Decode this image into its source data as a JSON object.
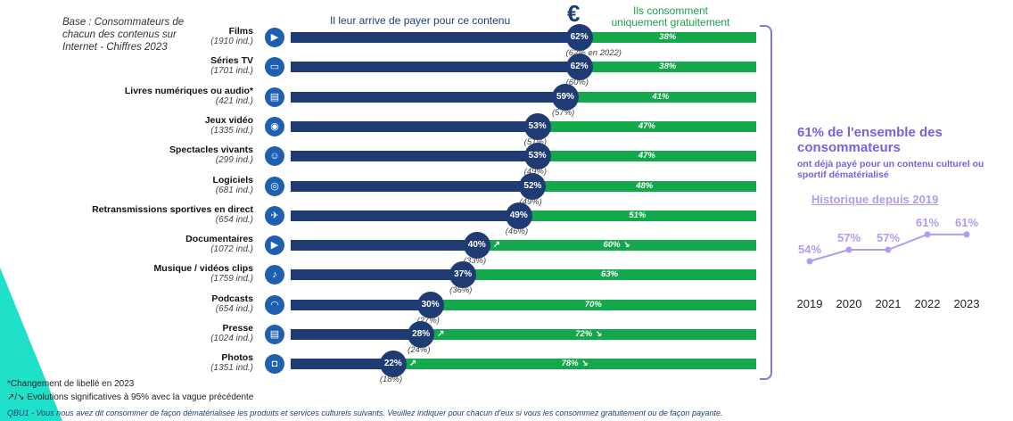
{
  "base_note": "Base : Consommateurs de chacun des contenus sur Internet - Chiffres 2023",
  "headers": {
    "paid": "Il leur arrive de payer pour ce contenu",
    "free_line1": "Ils consomment",
    "free_line2": "uniquement gratuitement",
    "euro_symbol": "€"
  },
  "chart_data": [
    {
      "type": "bar",
      "stacked": true,
      "orientation": "horizontal",
      "xlim": [
        0,
        100
      ],
      "categories": [
        "Films",
        "Séries TV",
        "Livres numériques ou audio*",
        "Jeux vidéo",
        "Spectacles vivants",
        "Logiciels",
        "Retransmissions sportives en direct",
        "Documentaires",
        "Musique / vidéos clips",
        "Podcasts",
        "Presse",
        "Photos"
      ],
      "bases": [
        "(1910 ind.)",
        "(1701 ind.)",
        "(421 ind.)",
        "(1335 ind.)",
        "(299 ind.)",
        "(681 ind.)",
        "(654 ind.)",
        "(1072 ind.)",
        "(1759 ind.)",
        "(654 ind.)",
        "(1024 ind.)",
        "(1351 ind.)"
      ],
      "icons": [
        "film-camera-icon",
        "tv-icon",
        "ebook-icon",
        "gamepad-icon",
        "theater-masks-icon",
        "software-disc-icon",
        "sport-runner-icon",
        "documentary-camera-icon",
        "music-icon",
        "headphones-icon",
        "newspaper-icon",
        "photo-camera-icon"
      ],
      "series": [
        {
          "name": "Il leur arrive de payer pour ce contenu",
          "color": "#1f3b73",
          "values": [
            62,
            62,
            59,
            53,
            53,
            52,
            49,
            40,
            37,
            30,
            28,
            22
          ],
          "labels": [
            "62%",
            "62%",
            "59%",
            "53%",
            "53%",
            "52%",
            "49%",
            "40%",
            "37%",
            "30%",
            "28%",
            "22%"
          ],
          "trend": [
            "",
            "",
            "",
            "",
            "",
            "",
            "",
            "up",
            "",
            "",
            "up",
            "up"
          ]
        },
        {
          "name": "Ils consomment uniquement gratuitement",
          "color": "#13a84b",
          "values": [
            38,
            38,
            41,
            47,
            47,
            48,
            51,
            60,
            63,
            70,
            72,
            78
          ],
          "labels": [
            "38%",
            "38%",
            "41%",
            "47%",
            "47%",
            "48%",
            "51%",
            "60%",
            "63%",
            "70%",
            "72%",
            "78%"
          ],
          "trend": [
            "",
            "",
            "",
            "",
            "",
            "",
            "",
            "down",
            "",
            "",
            "down",
            "down"
          ]
        }
      ],
      "previous_labels": [
        "(62% en 2022)",
        "(60%)",
        "(57%)",
        "(51%)",
        "(49%)",
        "(49%)",
        "(46%)",
        "(33%)",
        "(36%)",
        "(27%)",
        "(24%)",
        "(18%)"
      ]
    },
    {
      "type": "line",
      "title": "Historique depuis 2019",
      "x": [
        "2019",
        "2020",
        "2021",
        "2022",
        "2023"
      ],
      "series": [
        {
          "values": [
            54,
            57,
            57,
            61,
            61
          ],
          "labels": [
            "54%",
            "57%",
            "57%",
            "61%",
            "61%"
          ],
          "color": "#b49af2"
        }
      ]
    }
  ],
  "summary": {
    "big": "61% de l'ensemble des consommateurs",
    "small": "ont déjà payé pour un contenu culturel ou sportif dématérialisé"
  },
  "footnotes": {
    "changed_label": "*Changement de libellé en 2023",
    "arrows_symbols": "↗/↘",
    "arrows": "Evolutions significatives à 95% avec la vague précédente",
    "question": "QBU1 - Vous nous avez dit consommer de façon dématérialisée les produits et services culturels suivants. Veuillez indiquer pour chacun d'eux si vous les consommez gratuitement ou de façon payante."
  },
  "colors": {
    "paid": "#1f3b73",
    "free": "#13a84b",
    "accent": "#7b5fe0",
    "history": "#b49af2",
    "teal": "#1fe0c8"
  }
}
